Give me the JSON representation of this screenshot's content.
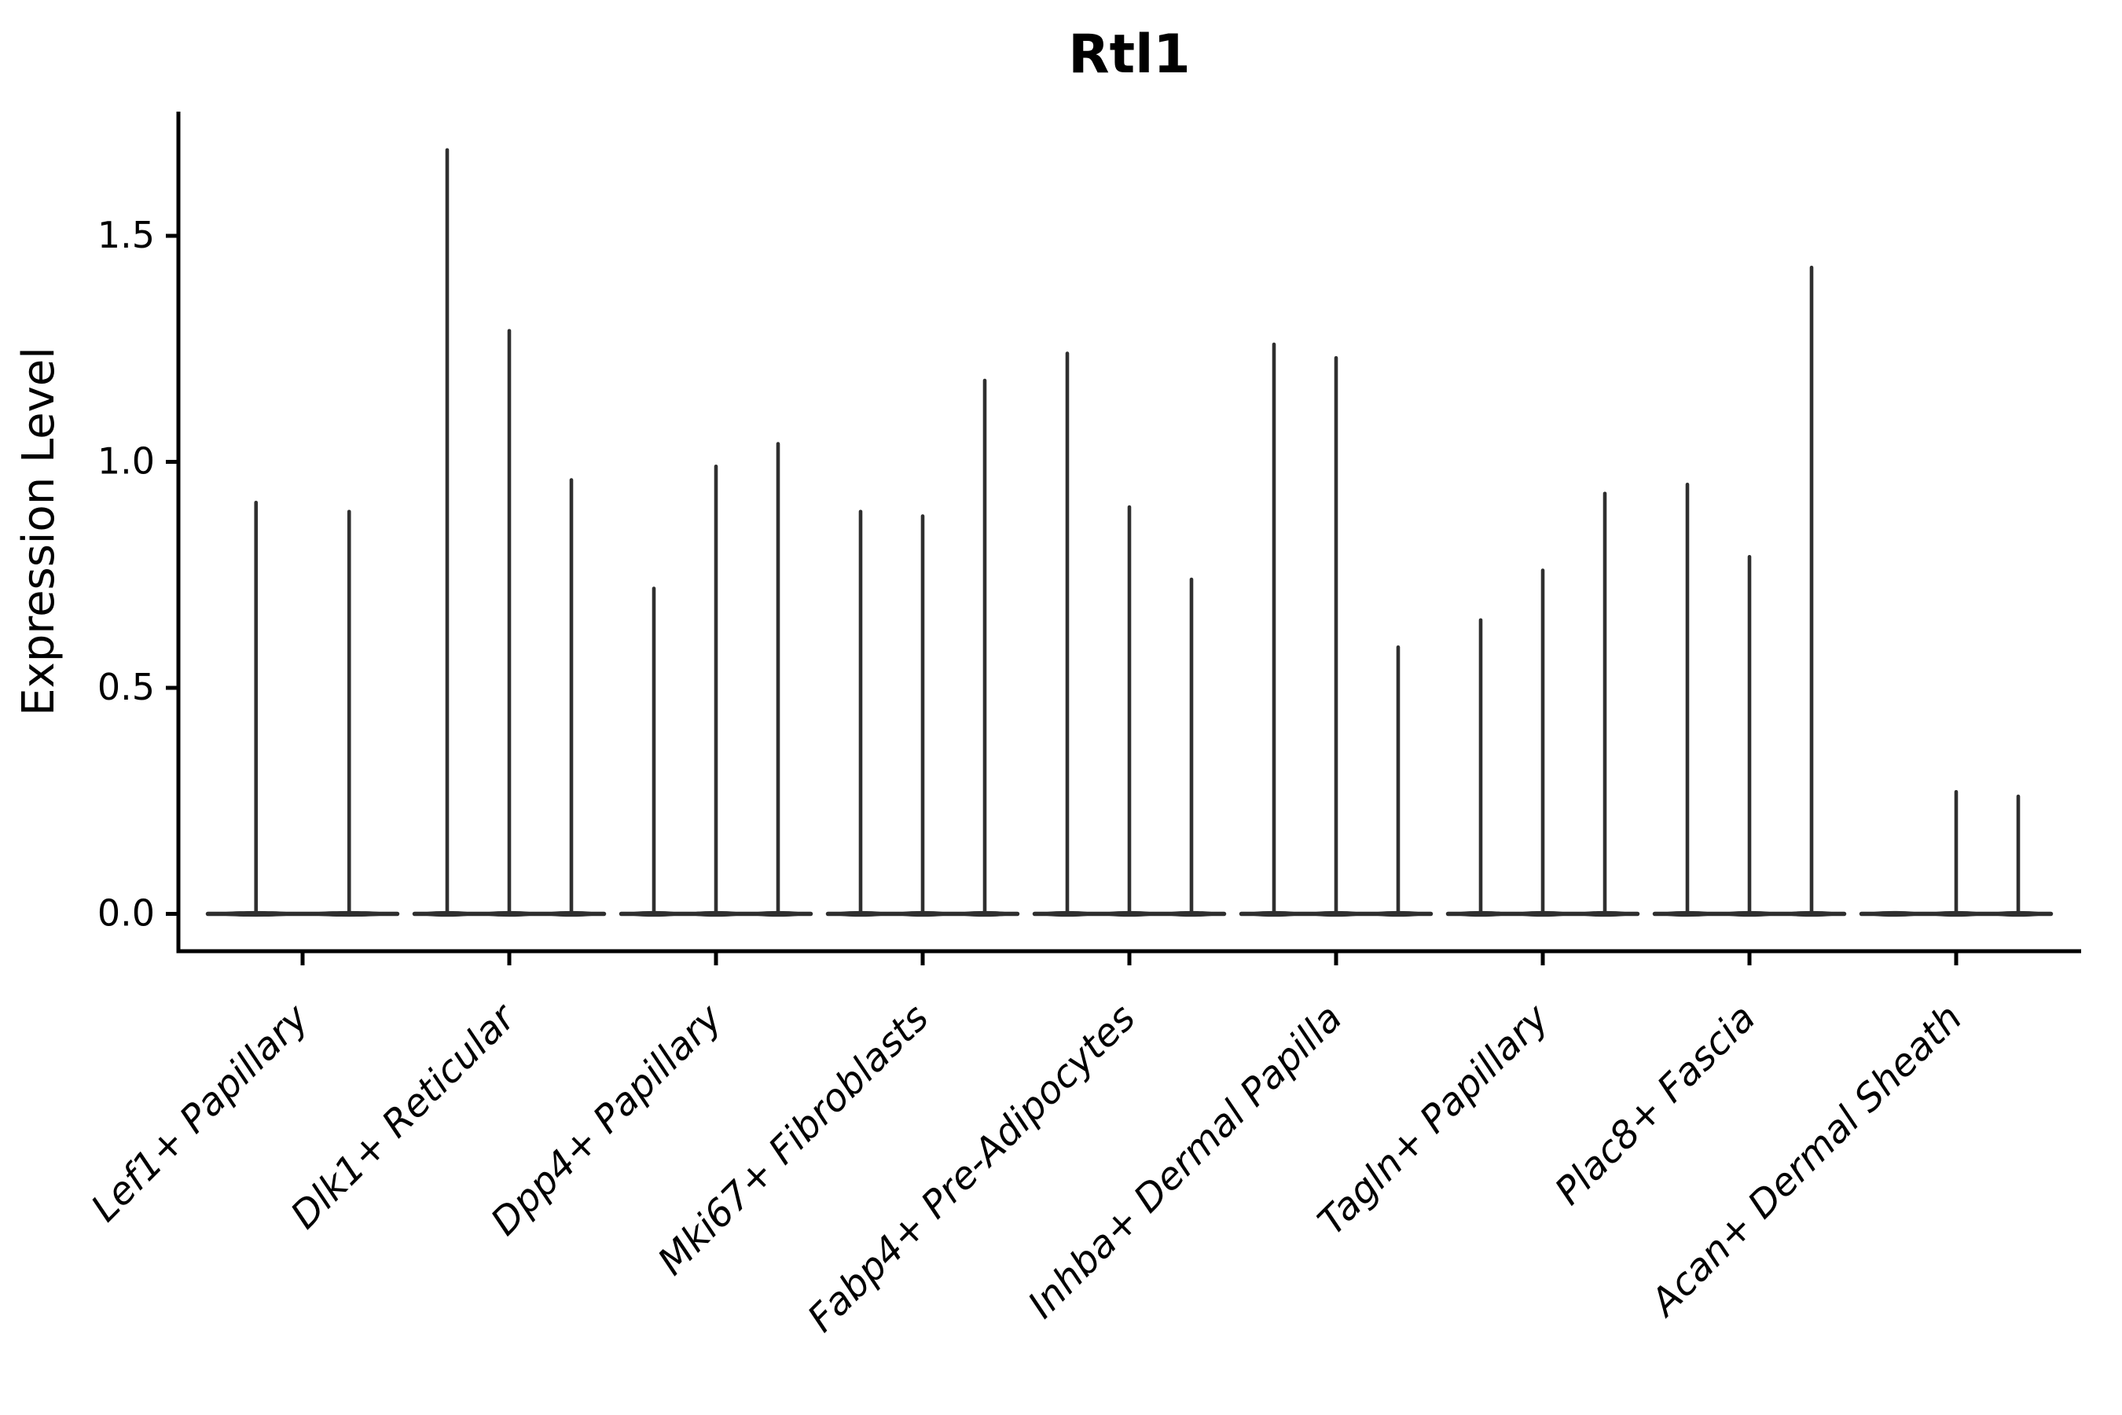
{
  "figure": {
    "title": "Rtl1",
    "ylabel": "Expression Level"
  },
  "chart_data": {
    "type": "violin",
    "title": "Rtl1",
    "xlabel": "",
    "ylabel": "Expression Level",
    "categories": [
      "Lef1+ Papillary",
      "Dlk1+ Reticular",
      "Dpp4+ Papillary",
      "Mki67+ Fibroblasts",
      "Fabp4+ Pre-Adipocytes",
      "Inhba+ Dermal Papilla",
      "Tagln+ Papillary",
      "Plac8+ Fascia",
      "Acan+ Dermal Sheath"
    ],
    "series": [
      {
        "name": "Lef1+ Papillary",
        "spike_values": [
          0.91,
          0.89
        ]
      },
      {
        "name": "Dlk1+ Reticular",
        "spike_values": [
          1.69,
          1.29,
          0.96
        ]
      },
      {
        "name": "Dpp4+ Papillary",
        "spike_values": [
          0.72,
          0.99,
          1.04
        ]
      },
      {
        "name": "Mki67+ Fibroblasts",
        "spike_values": [
          0.89,
          0.88,
          1.18
        ]
      },
      {
        "name": "Fabp4+ Pre-Adipocytes",
        "spike_values": [
          1.24,
          0.9,
          0.74
        ]
      },
      {
        "name": "Inhba+ Dermal Papilla",
        "spike_values": [
          1.26,
          1.23,
          0.59
        ]
      },
      {
        "name": "Tagln+ Papillary",
        "spike_values": [
          0.65,
          0.76,
          0.93
        ]
      },
      {
        "name": "Plac8+ Fascia",
        "spike_values": [
          0.95,
          0.79,
          1.43
        ]
      },
      {
        "name": "Acan+ Dermal Sheath",
        "spike_values": [
          0.0,
          0.27,
          0.26
        ]
      }
    ],
    "yticks": [
      0.0,
      0.5,
      1.0,
      1.5
    ],
    "ylim": [
      -0.084,
      1.775
    ],
    "grid": false,
    "legend_position": "none",
    "description": "Violin plot of Rtl1 expression; violins are collapsed flat at 0 with thin vertical spikes marking maximum expressing cells",
    "style": {
      "spike_color": "#2f2f2f",
      "axis_color": "#000000",
      "text_color": "#000000",
      "background": "#ffffff",
      "x_label_rotation_deg": 45,
      "x_labels_italic": true
    }
  }
}
